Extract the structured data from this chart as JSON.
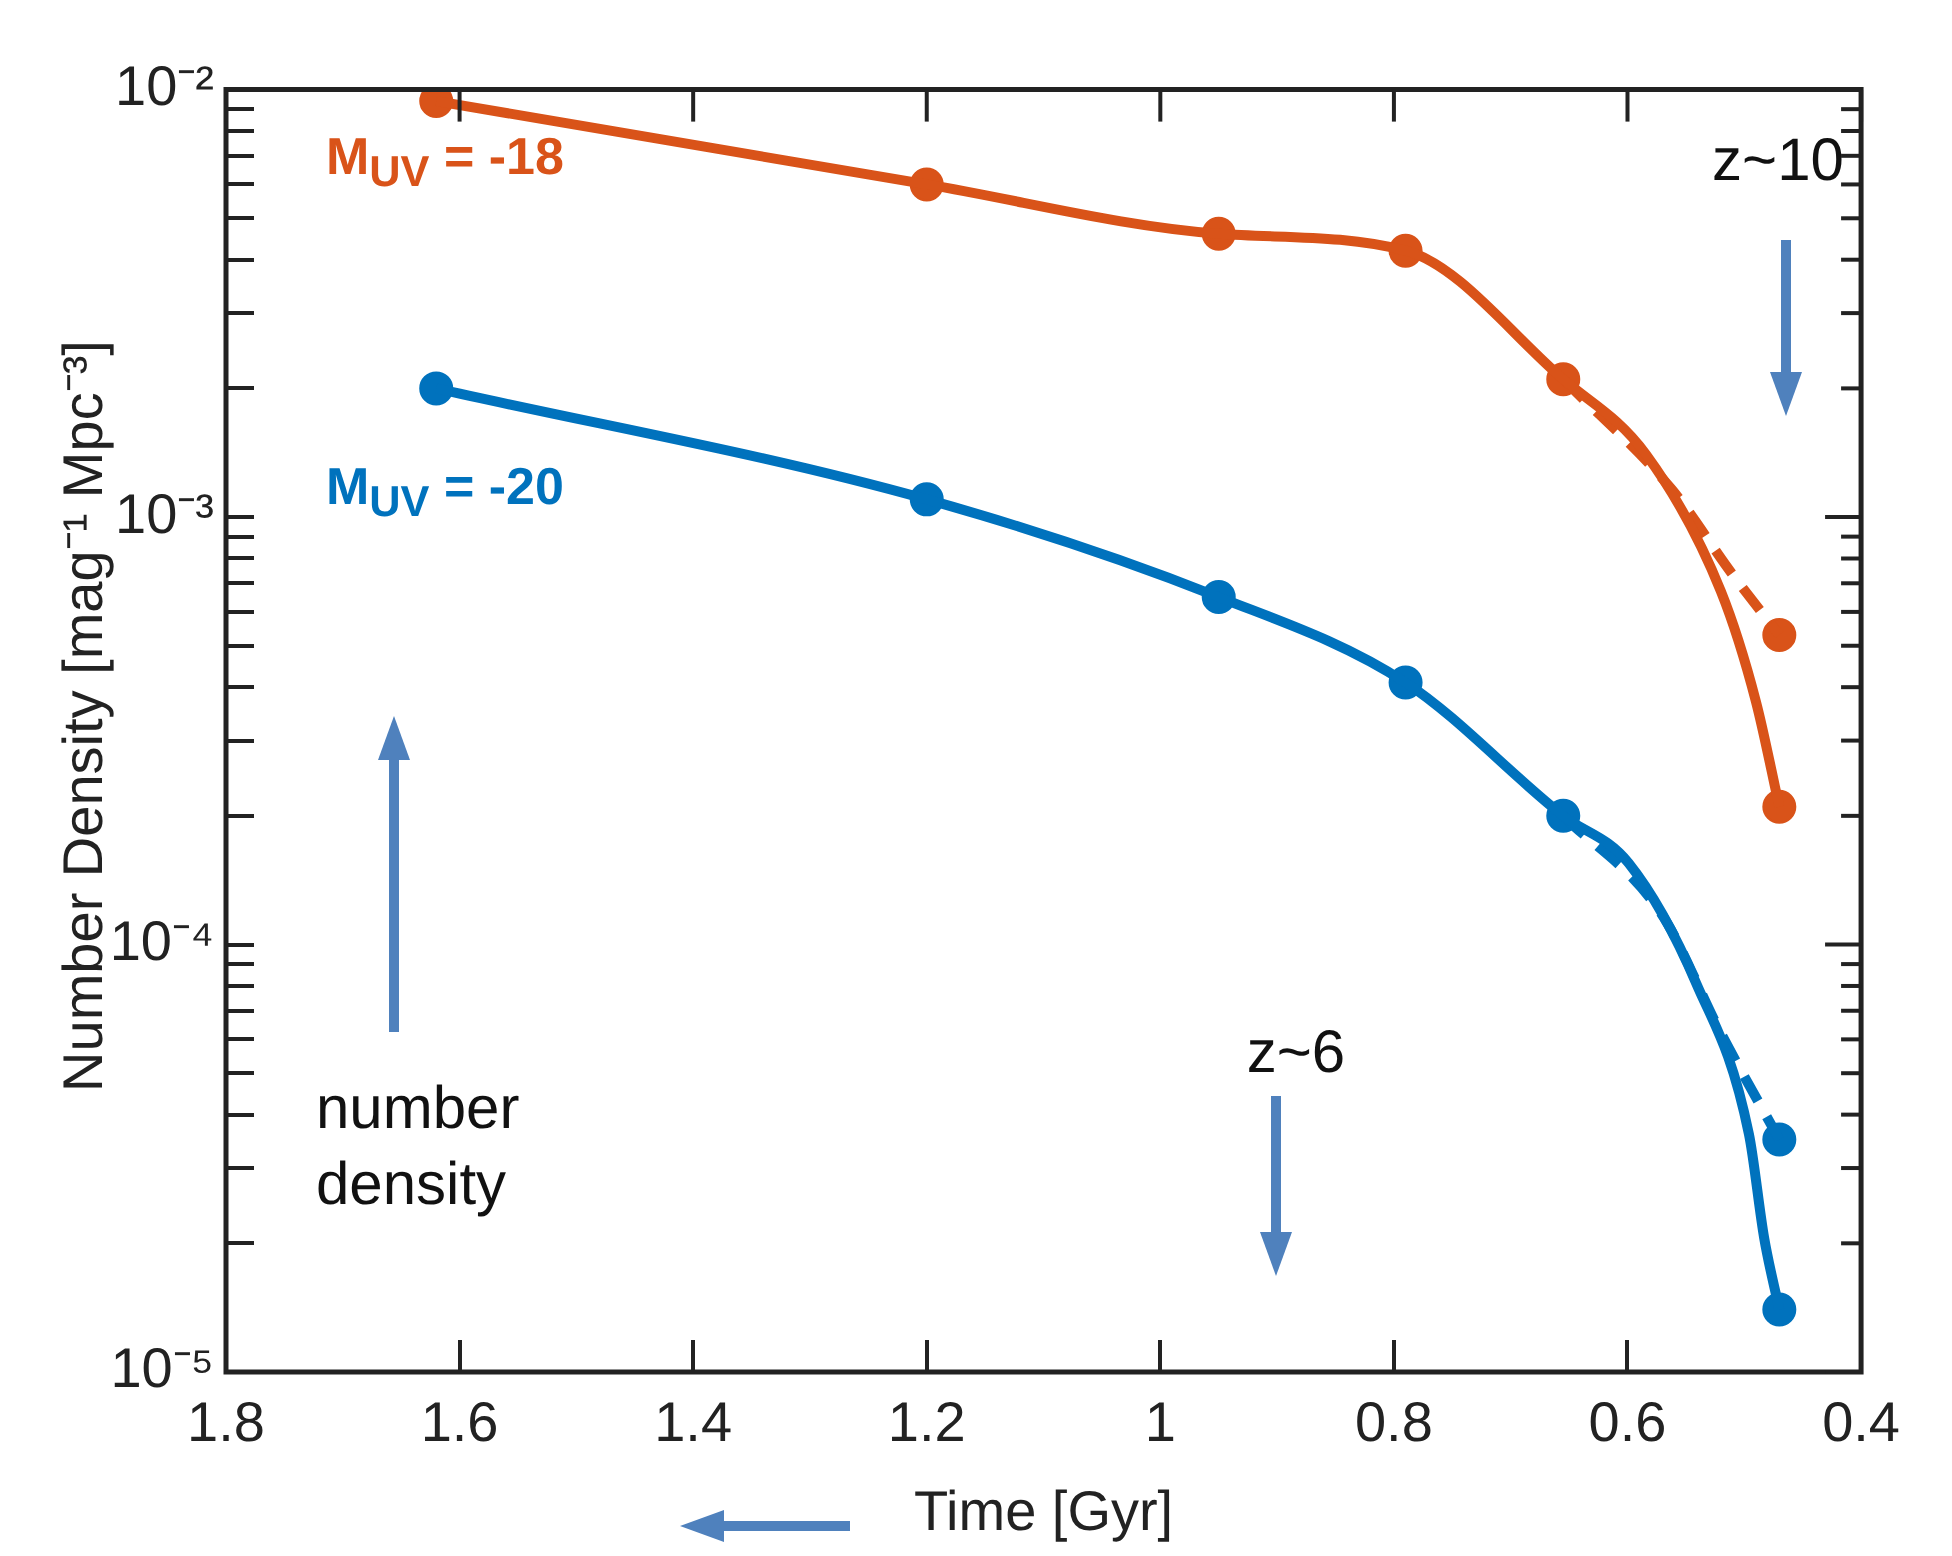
{
  "chart_data": {
    "type": "line",
    "xlabel": "Time [Gyr]",
    "ylabel": "Number Density [mag⁻¹ Mpc⁻³]",
    "log": "y",
    "grid": false,
    "legend": false,
    "xlim": [
      1.8,
      0.4
    ],
    "xticks": [
      1.8,
      1.6,
      1.4,
      1.2,
      1,
      0.8,
      0.6,
      0.4
    ],
    "ylim": [
      1e-05,
      0.01
    ],
    "yticks": [
      {
        "value": 1e-05,
        "label": "10⁻⁵"
      },
      {
        "value": 2e-05,
        "label": null
      },
      {
        "value": 3e-05,
        "label": null
      },
      {
        "value": 4e-05,
        "label": null
      },
      {
        "value": 5e-05,
        "label": null
      },
      {
        "value": 6e-05,
        "label": null
      },
      {
        "value": 7e-05,
        "label": null
      },
      {
        "value": 8e-05,
        "label": null
      },
      {
        "value": 9e-05,
        "label": null
      },
      {
        "value": 0.0001,
        "label": "10⁻⁴"
      },
      {
        "value": 0.0002,
        "label": null
      },
      {
        "value": 0.0003,
        "label": null
      },
      {
        "value": 0.0004,
        "label": null
      },
      {
        "value": 0.0005,
        "label": null
      },
      {
        "value": 0.0006,
        "label": null
      },
      {
        "value": 0.0007,
        "label": null
      },
      {
        "value": 0.0008,
        "label": null
      },
      {
        "value": 0.0009,
        "label": null
      },
      {
        "value": 0.001,
        "label": "10⁻³"
      },
      {
        "value": 0.002,
        "label": null
      },
      {
        "value": 0.003,
        "label": null
      },
      {
        "value": 0.004,
        "label": null
      },
      {
        "value": 0.005,
        "label": null
      },
      {
        "value": 0.006,
        "label": null
      },
      {
        "value": 0.007,
        "label": null
      },
      {
        "value": 0.008,
        "label": null
      },
      {
        "value": 0.009,
        "label": null
      },
      {
        "value": 0.01,
        "label": "10⁻²"
      }
    ],
    "series": [
      {
        "name": "M$_{UV}$ = -18",
        "type": "line",
        "color": "#d95319",
        "marker": "none",
        "line_style": "solid",
        "x": [
          1.62,
          1.2,
          0.95,
          0.79,
          0.655,
          0.584,
          0.52,
          0.49,
          0.47
        ],
        "values": [
          0.0094,
          0.006,
          0.0046,
          0.0042,
          0.0021,
          0.0014,
          0.00067,
          0.00037,
          0.00021
        ]
      },
      {
        "type": "line",
        "color": "#d95319",
        "marker": "none",
        "line_style": "dashed",
        "x": [
          0.655,
          0.562,
          0.511,
          0.47
        ],
        "values": [
          0.0021,
          0.00116,
          0.00074,
          0.00053
        ]
      },
      {
        "type": "scatter",
        "color": "#d95319",
        "marker": "circle",
        "x": [
          1.62,
          1.2,
          0.95,
          0.79,
          0.655,
          0.47,
          0.47
        ],
        "values": [
          0.0094,
          0.006,
          0.0046,
          0.0042,
          0.0021,
          0.00053,
          0.00021
        ]
      },
      {
        "name": "M$_{UV}$ = -20",
        "type": "line",
        "color": "#0072bd",
        "marker": "none",
        "line_style": "solid",
        "x": [
          1.62,
          1.2,
          0.95,
          0.79,
          0.655,
          0.599,
          0.541,
          0.496,
          0.483,
          0.47
        ],
        "values": [
          0.002,
          0.0011,
          0.00065,
          0.00041,
          0.0002,
          0.000155,
          8.1e-05,
          3.6e-05,
          2.06e-05,
          1.4e-05
        ]
      },
      {
        "type": "line",
        "color": "#0072bd",
        "marker": "none",
        "line_style": "dashed",
        "x": [
          0.655,
          0.571,
          0.52,
          0.47
        ],
        "values": [
          0.0002,
          0.000118,
          6.2e-05,
          3.5e-05
        ]
      },
      {
        "type": "scatter",
        "color": "#0072bd",
        "marker": "circle",
        "x": [
          1.62,
          1.2,
          0.95,
          0.79,
          0.655,
          0.47,
          0.47
        ],
        "values": [
          0.002,
          0.0011,
          0.00065,
          0.00041,
          0.0002,
          3.5e-05,
          1.4e-05
        ]
      }
    ],
    "annotations": [
      "z~10",
      "z~6",
      "number density"
    ]
  }
}
